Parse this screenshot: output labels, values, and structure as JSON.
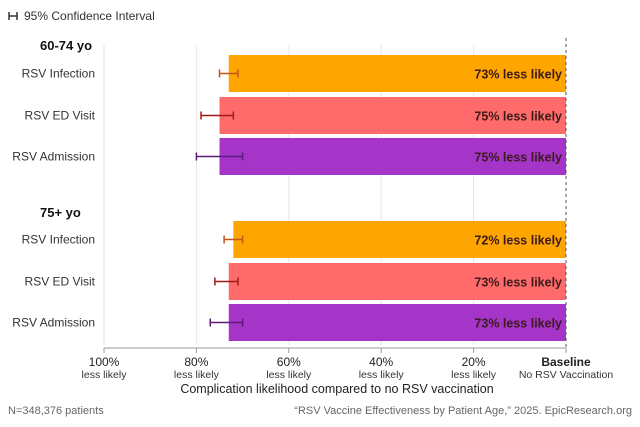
{
  "legend": {
    "ci_label": "95% Confidence Interval"
  },
  "footer": {
    "note": "N=348,376 patients",
    "source": "“RSV Vaccine Effectiveness by Patient Age,” 2025. EpicResearch.org"
  },
  "colors": {
    "infection": "#FFA500",
    "ed_visit": "#FF6B6B",
    "admission": "#A535C8",
    "ci_infection": "#C0561A",
    "ci_ed": "#A01A1A",
    "ci_admission": "#5A1B7A",
    "axis": "#999999",
    "baseline": "#555555"
  },
  "chart_data": {
    "type": "bar",
    "orientation": "horizontal",
    "title": "",
    "xlabel": "Complication likelihood compared to no RSV vaccination",
    "ylabel": "",
    "xlim": [
      100,
      0
    ],
    "ticks": [
      {
        "value": 100,
        "label": "100%",
        "sub": "less likely"
      },
      {
        "value": 80,
        "label": "80%",
        "sub": "less likely"
      },
      {
        "value": 60,
        "label": "60%",
        "sub": "less likely"
      },
      {
        "value": 40,
        "label": "40%",
        "sub": "less likely"
      },
      {
        "value": 20,
        "label": "20%",
        "sub": "less likely"
      },
      {
        "value": 0,
        "label": "Baseline",
        "sub": "No RSV Vaccination"
      }
    ],
    "groups": [
      {
        "name": "60-74 yo",
        "bars": [
          {
            "category": "RSV Infection",
            "value": 73,
            "ci": [
              75,
              71
            ],
            "label": "73% less likely",
            "color_key": "infection",
            "ci_color_key": "ci_infection"
          },
          {
            "category": "RSV ED Visit",
            "value": 75,
            "ci": [
              79,
              72
            ],
            "label": "75% less likely",
            "color_key": "ed_visit",
            "ci_color_key": "ci_ed"
          },
          {
            "category": "RSV Admission",
            "value": 75,
            "ci": [
              80,
              70
            ],
            "label": "75% less likely",
            "color_key": "admission",
            "ci_color_key": "ci_admission"
          }
        ]
      },
      {
        "name": "75+ yo",
        "bars": [
          {
            "category": "RSV Infection",
            "value": 72,
            "ci": [
              74,
              70
            ],
            "label": "72% less likely",
            "color_key": "infection",
            "ci_color_key": "ci_infection"
          },
          {
            "category": "RSV ED Visit",
            "value": 73,
            "ci": [
              76,
              71
            ],
            "label": "73% less likely",
            "color_key": "ed_visit",
            "ci_color_key": "ci_ed"
          },
          {
            "category": "RSV Admission",
            "value": 73,
            "ci": [
              77,
              70
            ],
            "label": "73% less likely",
            "color_key": "admission",
            "ci_color_key": "ci_admission"
          }
        ]
      }
    ]
  }
}
